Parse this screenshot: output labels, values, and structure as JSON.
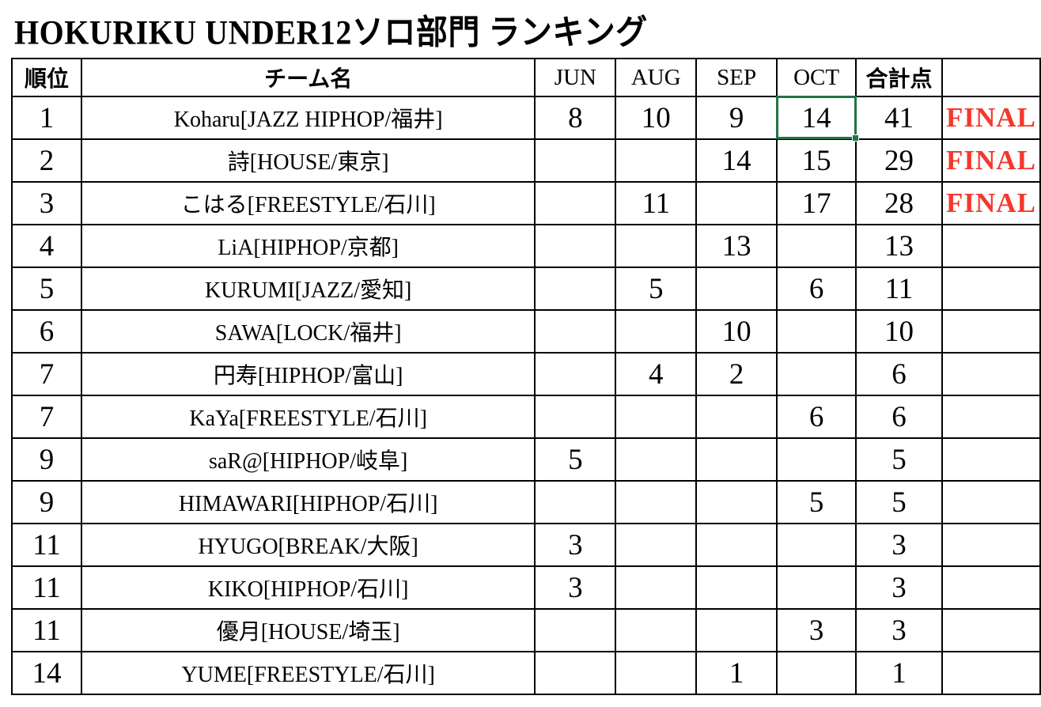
{
  "title": "HOKURIKU UNDER12ソロ部門 ランキング",
  "table": {
    "columns": [
      "順位",
      "チーム名",
      "JUN",
      "AUG",
      "SEP",
      "OCT",
      "合計点"
    ],
    "rows": [
      {
        "rank": "1",
        "team": "Koharu[JAZZ HIPHOP/福井]",
        "jun": "8",
        "aug": "10",
        "sep": "9",
        "oct": "14",
        "total": "41",
        "final": "FINAL"
      },
      {
        "rank": "2",
        "team": "詩[HOUSE/東京]",
        "jun": "",
        "aug": "",
        "sep": "14",
        "oct": "15",
        "total": "29",
        "final": "FINAL"
      },
      {
        "rank": "3",
        "team": "こはる[FREESTYLE/石川]",
        "jun": "",
        "aug": "11",
        "sep": "",
        "oct": "17",
        "total": "28",
        "final": "FINAL"
      },
      {
        "rank": "4",
        "team": "LiA[HIPHOP/京都]",
        "jun": "",
        "aug": "",
        "sep": "13",
        "oct": "",
        "total": "13",
        "final": ""
      },
      {
        "rank": "5",
        "team": "KURUMI[JAZZ/愛知]",
        "jun": "",
        "aug": "5",
        "sep": "",
        "oct": "6",
        "total": "11",
        "final": ""
      },
      {
        "rank": "6",
        "team": "SAWA[LOCK/福井]",
        "jun": "",
        "aug": "",
        "sep": "10",
        "oct": "",
        "total": "10",
        "final": ""
      },
      {
        "rank": "7",
        "team": "円寿[HIPHOP/富山]",
        "jun": "",
        "aug": "4",
        "sep": "2",
        "oct": "",
        "total": "6",
        "final": ""
      },
      {
        "rank": "7",
        "team": "KaYa[FREESTYLE/石川]",
        "jun": "",
        "aug": "",
        "sep": "",
        "oct": "6",
        "total": "6",
        "final": ""
      },
      {
        "rank": "9",
        "team": "saR@[HIPHOP/岐阜]",
        "jun": "5",
        "aug": "",
        "sep": "",
        "oct": "",
        "total": "5",
        "final": ""
      },
      {
        "rank": "9",
        "team": "HIMAWARI[HIPHOP/石川]",
        "jun": "",
        "aug": "",
        "sep": "",
        "oct": "5",
        "total": "5",
        "final": ""
      },
      {
        "rank": "11",
        "team": "HYUGO[BREAK/大阪]",
        "jun": "3",
        "aug": "",
        "sep": "",
        "oct": "",
        "total": "3",
        "final": ""
      },
      {
        "rank": "11",
        "team": "KIKO[HIPHOP/石川]",
        "jun": "3",
        "aug": "",
        "sep": "",
        "oct": "",
        "total": "3",
        "final": ""
      },
      {
        "rank": "11",
        "team": "優月[HOUSE/埼玉]",
        "jun": "",
        "aug": "",
        "sep": "",
        "oct": "3",
        "total": "3",
        "final": ""
      },
      {
        "rank": "14",
        "team": "YUME[FREESTYLE/石川]",
        "jun": "",
        "aug": "",
        "sep": "1",
        "oct": "",
        "total": "1",
        "final": ""
      }
    ]
  },
  "selection": {
    "row_index": 0,
    "column_key": "oct",
    "value": "14"
  },
  "colors": {
    "selection_green": "#217346",
    "final_red": "#f5382c",
    "grid_black": "#000000"
  }
}
